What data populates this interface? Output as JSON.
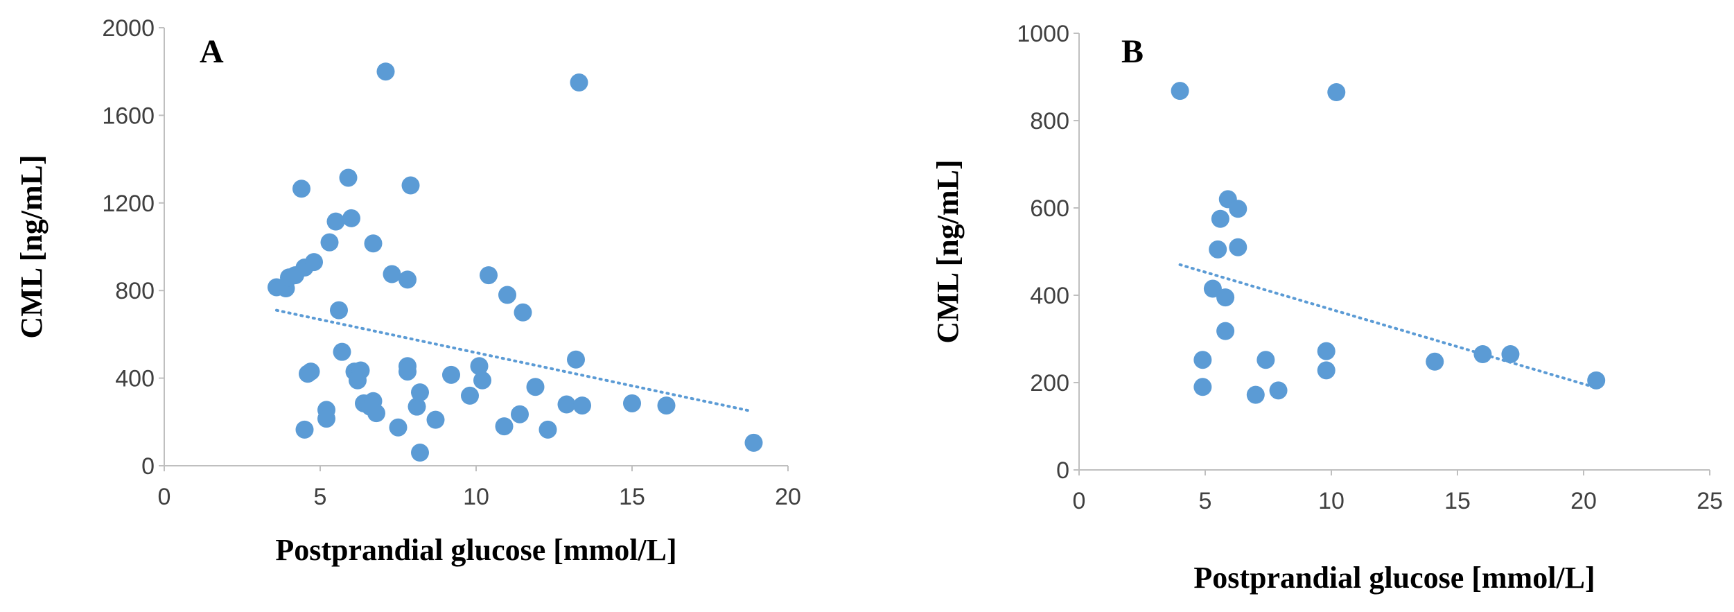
{
  "colors": {
    "points": "#5b9bd5",
    "trend": "#5b9bd5",
    "axis": "#bfbfbf",
    "text": "#404040"
  },
  "chart_data": [
    {
      "type": "scatter",
      "panel": "A",
      "xlabel": "Postprandial glucose [mmol/L]",
      "ylabel": "CML [ng/mL]",
      "xlim": [
        0,
        20
      ],
      "ylim": [
        0,
        2000
      ],
      "xticks": [
        0,
        5,
        10,
        15,
        20
      ],
      "yticks": [
        0,
        400,
        800,
        1200,
        1600,
        2000
      ],
      "trendline": {
        "style": "dotted",
        "from": [
          3.6,
          710
        ],
        "to": [
          18.8,
          250
        ]
      },
      "points": [
        [
          3.6,
          815
        ],
        [
          3.9,
          810
        ],
        [
          4.0,
          860
        ],
        [
          4.2,
          870
        ],
        [
          4.5,
          905
        ],
        [
          4.8,
          930
        ],
        [
          4.4,
          1265
        ],
        [
          5.3,
          1020
        ],
        [
          5.5,
          1115
        ],
        [
          5.9,
          1315
        ],
        [
          6.0,
          1130
        ],
        [
          6.7,
          1015
        ],
        [
          7.1,
          1800
        ],
        [
          7.3,
          875
        ],
        [
          7.8,
          850
        ],
        [
          7.9,
          1280
        ],
        [
          13.3,
          1750
        ],
        [
          5.6,
          710
        ],
        [
          10.4,
          870
        ],
        [
          11.0,
          780
        ],
        [
          11.5,
          700
        ],
        [
          5.7,
          520
        ],
        [
          6.1,
          430
        ],
        [
          6.3,
          435
        ],
        [
          6.2,
          390
        ],
        [
          7.8,
          455
        ],
        [
          7.8,
          430
        ],
        [
          9.2,
          415
        ],
        [
          9.8,
          320
        ],
        [
          10.1,
          455
        ],
        [
          10.2,
          390
        ],
        [
          11.9,
          360
        ],
        [
          13.2,
          485
        ],
        [
          4.6,
          420
        ],
        [
          4.7,
          430
        ],
        [
          5.2,
          255
        ],
        [
          5.2,
          215
        ],
        [
          6.4,
          285
        ],
        [
          6.6,
          270
        ],
        [
          6.7,
          295
        ],
        [
          6.8,
          240
        ],
        [
          7.5,
          175
        ],
        [
          8.1,
          270
        ],
        [
          8.2,
          335
        ],
        [
          8.7,
          210
        ],
        [
          4.5,
          165
        ],
        [
          8.2,
          60
        ],
        [
          10.9,
          180
        ],
        [
          11.4,
          235
        ],
        [
          12.3,
          165
        ],
        [
          12.9,
          280
        ],
        [
          13.4,
          275
        ],
        [
          15.0,
          285
        ],
        [
          16.1,
          275
        ],
        [
          18.9,
          105
        ]
      ]
    },
    {
      "type": "scatter",
      "panel": "B",
      "xlabel": "Postprandial glucose [mmol/L]",
      "ylabel": "CML [ng/mL]",
      "xlim": [
        0,
        25
      ],
      "ylim": [
        0,
        1000
      ],
      "xticks": [
        0,
        5,
        10,
        15,
        20,
        25
      ],
      "yticks": [
        0,
        200,
        400,
        600,
        800,
        1000
      ],
      "trendline": {
        "style": "dotted",
        "from": [
          4.0,
          470
        ],
        "to": [
          20.4,
          190
        ]
      },
      "points": [
        [
          4.0,
          868
        ],
        [
          10.2,
          865
        ],
        [
          5.9,
          620
        ],
        [
          5.6,
          575
        ],
        [
          6.3,
          598
        ],
        [
          5.5,
          505
        ],
        [
          6.3,
          510
        ],
        [
          5.3,
          415
        ],
        [
          5.8,
          395
        ],
        [
          5.8,
          318
        ],
        [
          4.9,
          252
        ],
        [
          4.9,
          190
        ],
        [
          7.0,
          172
        ],
        [
          7.4,
          252
        ],
        [
          7.9,
          182
        ],
        [
          9.8,
          272
        ],
        [
          9.8,
          228
        ],
        [
          14.1,
          248
        ],
        [
          16.0,
          265
        ],
        [
          17.1,
          265
        ],
        [
          20.5,
          205
        ]
      ]
    }
  ]
}
